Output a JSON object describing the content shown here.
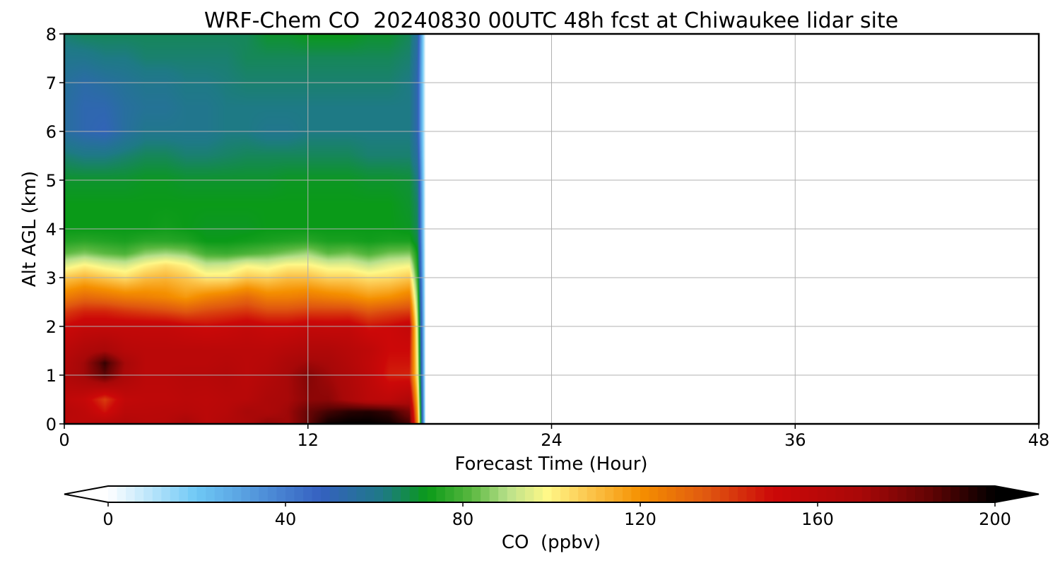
{
  "chart_data": {
    "type": "heatmap",
    "title": "WRF-Chem CO  20240830 00UTC 48h fcst at Chiwaukee lidar site",
    "xlabel": "Forecast Time (Hour)",
    "ylabel": "Alt AGL (km)",
    "xlim": [
      0,
      48
    ],
    "ylim": [
      0,
      8
    ],
    "xticks": [
      0,
      12,
      24,
      36,
      48
    ],
    "yticks": [
      0,
      1,
      2,
      3,
      4,
      5,
      6,
      7,
      8
    ],
    "grid": true,
    "colorbar": {
      "label": "CO  (ppbv)",
      "min": 0,
      "max": 200,
      "ticks": [
        0,
        40,
        80,
        120,
        160,
        200
      ],
      "extend": "both",
      "stops": [
        {
          "v": 0,
          "c": "#ffffff"
        },
        {
          "v": 20,
          "c": "#6ec8f5"
        },
        {
          "v": 48,
          "c": "#3560c0"
        },
        {
          "v": 62,
          "c": "#1e7a85"
        },
        {
          "v": 72,
          "c": "#0a9a18"
        },
        {
          "v": 82,
          "c": "#5ab840"
        },
        {
          "v": 90,
          "c": "#b8e08a"
        },
        {
          "v": 99,
          "c": "#fff888"
        },
        {
          "v": 108,
          "c": "#fcc850"
        },
        {
          "v": 120,
          "c": "#f59000"
        },
        {
          "v": 135,
          "c": "#e05810"
        },
        {
          "v": 150,
          "c": "#cc0808"
        },
        {
          "v": 170,
          "c": "#a80808"
        },
        {
          "v": 185,
          "c": "#640404"
        },
        {
          "v": 200,
          "c": "#000000"
        }
      ]
    },
    "field": {
      "x_hours": [
        0,
        1,
        2,
        3,
        4,
        5,
        6,
        7,
        8,
        9,
        10,
        11,
        12,
        13,
        14,
        15,
        16,
        17,
        17.4,
        17.8
      ],
      "y_km": [
        0,
        0.25,
        0.5,
        1,
        1.25,
        1.5,
        2,
        2.3,
        2.6,
        3,
        3.25,
        3.5,
        3.75,
        4,
        4.5,
        5,
        5.5,
        6,
        6.5,
        7,
        7.5,
        8
      ],
      "values": [
        [
          160,
          160,
          163,
          165,
          162,
          162,
          170,
          160,
          165,
          168,
          175,
          172,
          185,
          198,
          200,
          200,
          198,
          190,
          120,
          0
        ],
        [
          162,
          158,
          148,
          160,
          160,
          161,
          162,
          160,
          162,
          170,
          168,
          172,
          184,
          190,
          194,
          195,
          192,
          180,
          115,
          0
        ],
        [
          158,
          154,
          140,
          156,
          158,
          158,
          160,
          159,
          161,
          162,
          168,
          170,
          176,
          176,
          168,
          160,
          158,
          165,
          110,
          0
        ],
        [
          165,
          172,
          186,
          168,
          160,
          160,
          162,
          162,
          164,
          160,
          164,
          170,
          178,
          172,
          166,
          158,
          146,
          145,
          100,
          0
        ],
        [
          163,
          172,
          192,
          170,
          160,
          160,
          160,
          160,
          162,
          160,
          162,
          168,
          172,
          170,
          164,
          157,
          148,
          148,
          98,
          0
        ],
        [
          160,
          166,
          170,
          162,
          160,
          160,
          160,
          160,
          160,
          160,
          160,
          163,
          166,
          166,
          162,
          158,
          150,
          150,
          96,
          0
        ],
        [
          150,
          155,
          155,
          155,
          155,
          155,
          152,
          150,
          152,
          155,
          152,
          152,
          155,
          154,
          155,
          148,
          150,
          155,
          92,
          0
        ],
        [
          140,
          145,
          145,
          142,
          140,
          138,
          135,
          138,
          140,
          142,
          138,
          138,
          140,
          140,
          140,
          135,
          138,
          140,
          88,
          0
        ],
        [
          125,
          130,
          128,
          125,
          124,
          122,
          118,
          123,
          126,
          130,
          124,
          124,
          126,
          124,
          122,
          118,
          120,
          125,
          84,
          0
        ],
        [
          108,
          112,
          108,
          104,
          110,
          112,
          108,
          102,
          102,
          108,
          106,
          110,
          110,
          106,
          106,
          103,
          104,
          108,
          78,
          0
        ],
        [
          95,
          100,
          96,
          94,
          100,
          104,
          100,
          92,
          93,
          98,
          96,
          100,
          100,
          96,
          96,
          92,
          96,
          98,
          74,
          0
        ],
        [
          82,
          85,
          82,
          80,
          86,
          88,
          86,
          79,
          78,
          80,
          82,
          85,
          88,
          82,
          84,
          80,
          84,
          85,
          72,
          0
        ],
        [
          75,
          76,
          75,
          74,
          76,
          76,
          75,
          72,
          72,
          73,
          74,
          75,
          76,
          74,
          74,
          73,
          74,
          74,
          68,
          0
        ],
        [
          72,
          72,
          72,
          72,
          72,
          73,
          72,
          71,
          71,
          71,
          72,
          72,
          72,
          72,
          72,
          72,
          72,
          71,
          66,
          0
        ],
        [
          72,
          72,
          72,
          72,
          72,
          72,
          72,
          72,
          72,
          72,
          72,
          72,
          72,
          72,
          72,
          72,
          72,
          70,
          65,
          0
        ],
        [
          70,
          70,
          70,
          70,
          71,
          71,
          70,
          70,
          70,
          70,
          70,
          71,
          71,
          71,
          71,
          70,
          70,
          69,
          62,
          0
        ],
        [
          64,
          62,
          62,
          64,
          66,
          66,
          64,
          64,
          65,
          66,
          66,
          66,
          66,
          66,
          66,
          64,
          64,
          64,
          56,
          0
        ],
        [
          56,
          52,
          50,
          56,
          60,
          60,
          60,
          60,
          62,
          62,
          60,
          60,
          62,
          62,
          62,
          62,
          62,
          62,
          52,
          0
        ],
        [
          56,
          52,
          52,
          56,
          58,
          58,
          60,
          60,
          62,
          62,
          62,
          62,
          62,
          62,
          62,
          62,
          62,
          62,
          52,
          0
        ],
        [
          57,
          54,
          56,
          58,
          60,
          60,
          62,
          62,
          63,
          64,
          64,
          64,
          64,
          64,
          64,
          64,
          64,
          62,
          52,
          0
        ],
        [
          60,
          60,
          62,
          62,
          64,
          64,
          64,
          64,
          64,
          66,
          66,
          66,
          66,
          66,
          66,
          66,
          66,
          64,
          54,
          0
        ],
        [
          64,
          66,
          66,
          66,
          66,
          66,
          66,
          66,
          66,
          66,
          70,
          70,
          72,
          72,
          72,
          70,
          70,
          66,
          56,
          0
        ]
      ]
    }
  }
}
